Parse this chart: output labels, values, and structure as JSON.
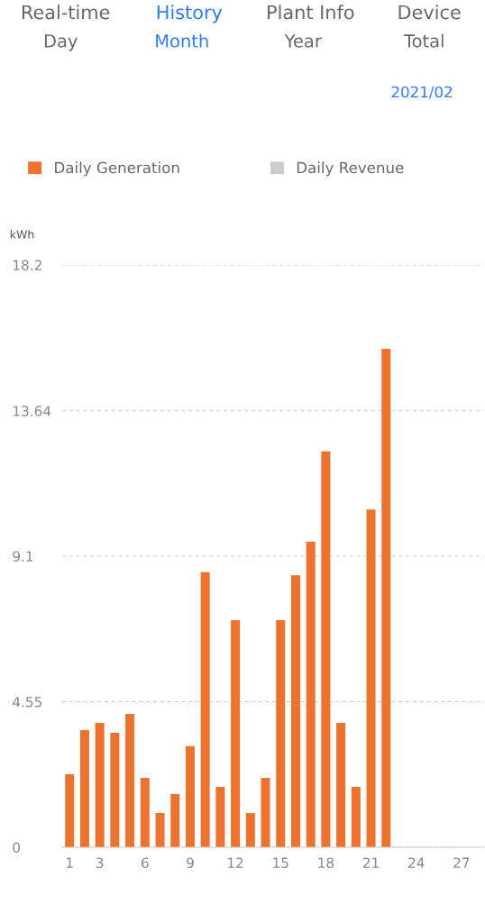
{
  "chart_data": {
    "type": "bar",
    "ylabel": "kWh",
    "annotations": [
      "Real-time",
      "History",
      "Plant Info",
      "Device",
      "Day",
      "Month",
      "Year",
      "Total",
      "2021/02"
    ],
    "categories": [
      "1",
      null,
      "3",
      null,
      null,
      "6",
      null,
      null,
      "9",
      null,
      null,
      "12",
      null,
      null,
      "15",
      null,
      null,
      "18",
      null,
      null,
      "21",
      null,
      null,
      "24",
      null,
      null,
      "27",
      null
    ],
    "series": [
      {
        "name": "Daily Generation",
        "color": "#ec7230",
        "values": [
          2.28,
          3.66,
          3.89,
          3.58,
          4.17,
          2.17,
          1.07,
          1.66,
          3.16,
          8.6,
          1.89,
          7.1,
          1.07,
          2.17,
          7.1,
          8.5,
          9.55,
          12.37,
          3.89,
          1.89,
          10.56,
          15.58,
          null,
          null,
          null,
          null,
          null,
          null
        ]
      },
      {
        "name": "Daily Revenue",
        "color": "#cccccc",
        "values": [
          null,
          null,
          null,
          null,
          null,
          null,
          null,
          null,
          null,
          null,
          null,
          null,
          null,
          null,
          null,
          null,
          null,
          null,
          null,
          null,
          null,
          null,
          null,
          null,
          null,
          null,
          null,
          null
        ]
      }
    ],
    "ylim": [
      0,
      18.2
    ],
    "yticks": [
      0,
      4.55,
      9.1,
      13.64,
      18.2
    ],
    "grid": "y",
    "legend": "top left"
  }
}
